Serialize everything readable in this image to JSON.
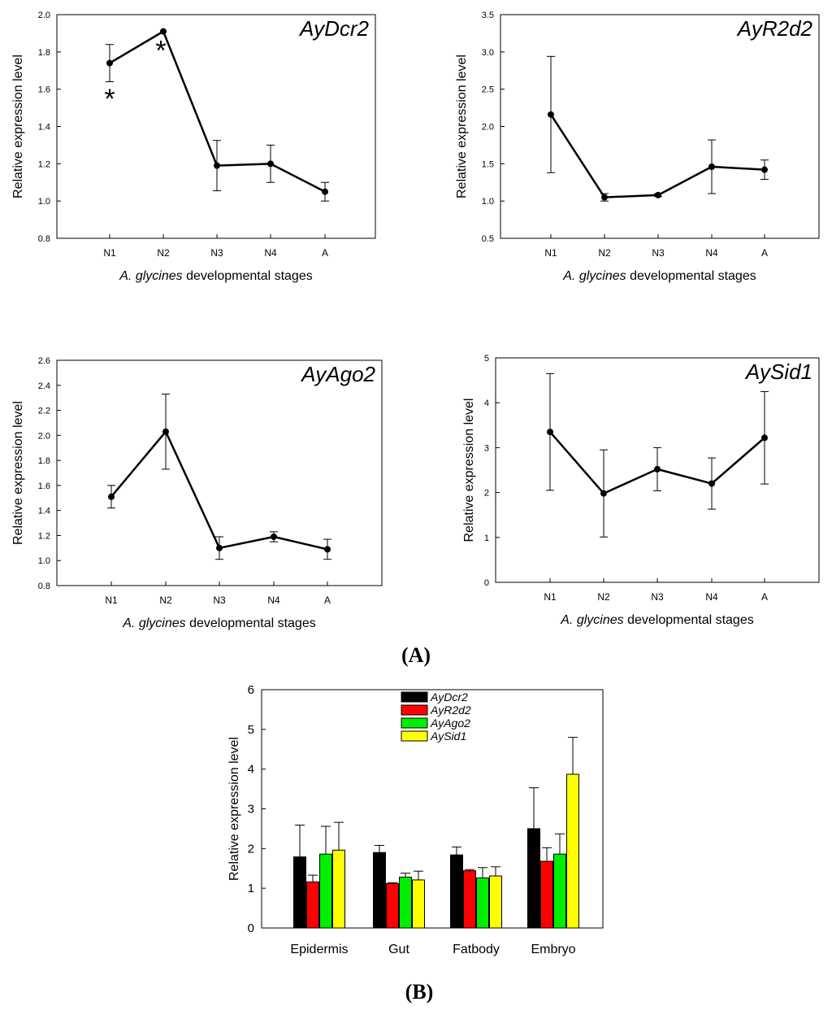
{
  "panel_labels": {
    "a": "(A)",
    "b": "(B)"
  },
  "chart_data": [
    {
      "type": "line",
      "title": "AyDcr2",
      "xlabel_italic": "A. glycines",
      "xlabel_rest": " developmental stages",
      "ylabel": "Relative expression level",
      "categories": [
        "N1",
        "N2",
        "N3",
        "N4",
        "A"
      ],
      "values": [
        1.74,
        1.91,
        1.19,
        1.2,
        1.05
      ],
      "errors": [
        0.1,
        0,
        0.135,
        0.1,
        0.05
      ],
      "ylim": [
        0.8,
        2.0
      ],
      "yticks": [
        "0.8",
        "1.0",
        "1.2",
        "1.4",
        "1.6",
        "1.8",
        "2.0"
      ],
      "annotations": [
        {
          "text": "*",
          "category": "N1",
          "y": 1.56
        },
        {
          "text": "*",
          "category": "N2",
          "y": 1.82
        }
      ]
    },
    {
      "type": "line",
      "title": "AyR2d2",
      "xlabel_italic": "A. glycines",
      "xlabel_rest": " developmental stages",
      "ylabel": "Relative expression level",
      "categories": [
        "N1",
        "N2",
        "N3",
        "N4",
        "A"
      ],
      "values": [
        2.16,
        1.05,
        1.08,
        1.46,
        1.42
      ],
      "errors": [
        0.78,
        0.05,
        0.02,
        0.36,
        0.13
      ],
      "ylim": [
        0.5,
        3.5
      ],
      "yticks": [
        "0.5",
        "1.0",
        "1.5",
        "2.0",
        "2.5",
        "3.0",
        "3.5"
      ],
      "annotations": []
    },
    {
      "type": "line",
      "title": "AyAgo2",
      "xlabel_italic": "A. glycines",
      "xlabel_rest": " developmental stages",
      "ylabel": "Relative expression level",
      "categories": [
        "N1",
        "N2",
        "N3",
        "N4",
        "A"
      ],
      "values": [
        1.51,
        2.03,
        1.1,
        1.19,
        1.09
      ],
      "errors": [
        0.09,
        0.3,
        0.09,
        0.04,
        0.08
      ],
      "ylim": [
        0.8,
        2.6
      ],
      "yticks": [
        "0.8",
        "1.0",
        "1.2",
        "1.4",
        "1.6",
        "1.8",
        "2.0",
        "2.2",
        "2.4",
        "2.6"
      ],
      "annotations": []
    },
    {
      "type": "line",
      "title": "AySid1",
      "xlabel_italic": "A. glycines",
      "xlabel_rest": " developmental stages",
      "ylabel": "Relative expression level",
      "categories": [
        "N1",
        "N2",
        "N3",
        "N4",
        "A"
      ],
      "values": [
        3.35,
        1.98,
        2.52,
        2.2,
        3.22
      ],
      "errors": [
        1.3,
        0.97,
        0.48,
        0.57,
        1.03
      ],
      "ylim": [
        0,
        5
      ],
      "yticks": [
        "0",
        "1",
        "2",
        "3",
        "4",
        "5"
      ],
      "annotations": []
    },
    {
      "type": "bar",
      "ylabel": "Relative expression level",
      "categories": [
        "Epidermis",
        "Gut",
        "Fatbody",
        "Embryo"
      ],
      "ylim": [
        0,
        6
      ],
      "yticks": [
        "0",
        "1",
        "2",
        "3",
        "4",
        "5",
        "6"
      ],
      "legend_position": "top-center",
      "series": [
        {
          "name": "AyDcr2",
          "color": "#000000",
          "values": [
            1.79,
            1.9,
            1.84,
            2.5
          ],
          "errors": [
            0.8,
            0.18,
            0.2,
            1.03
          ]
        },
        {
          "name": "AyR2d2",
          "color": "#ff0000",
          "values": [
            1.16,
            1.12,
            1.44,
            1.68
          ],
          "errors": [
            0.17,
            0.02,
            0.03,
            0.34
          ]
        },
        {
          "name": "AyAgo2",
          "color": "#00ee00",
          "values": [
            1.86,
            1.28,
            1.26,
            1.86
          ],
          "errors": [
            0.7,
            0.1,
            0.26,
            0.51
          ]
        },
        {
          "name": "AySid1",
          "color": "#ffff00",
          "values": [
            1.96,
            1.21,
            1.31,
            3.87
          ],
          "errors": [
            0.7,
            0.22,
            0.23,
            0.93
          ]
        }
      ]
    }
  ]
}
